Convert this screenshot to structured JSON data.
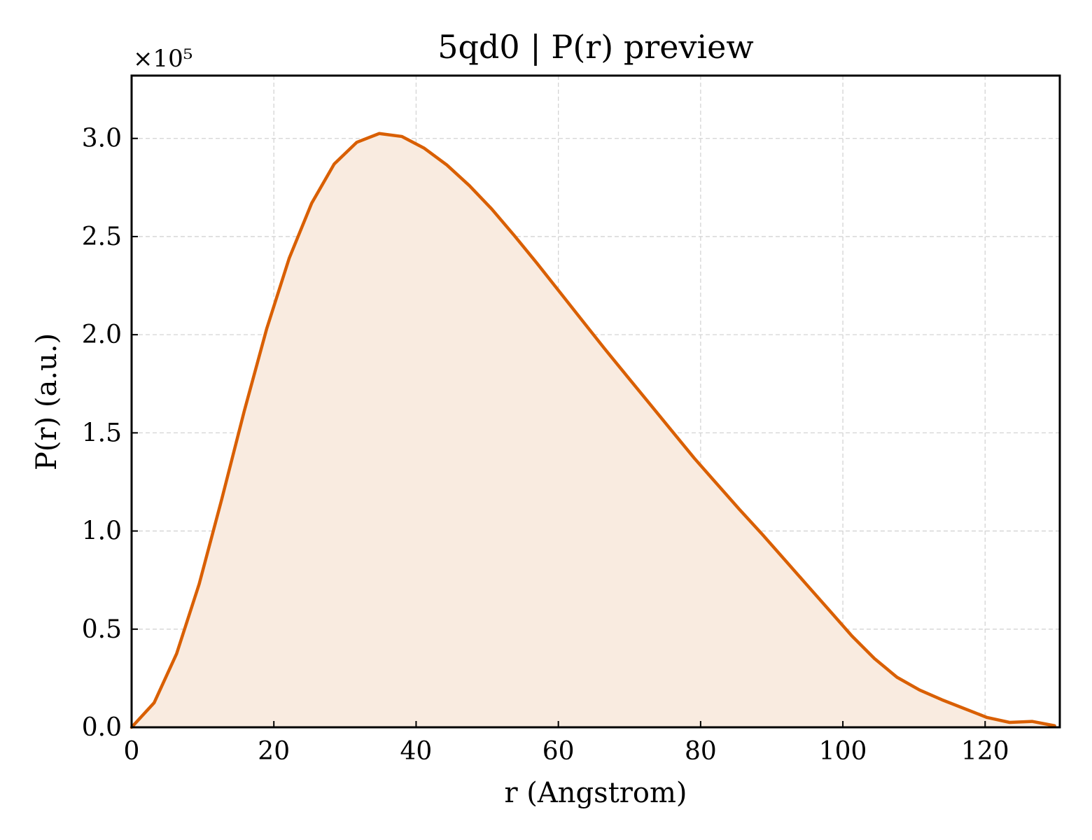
{
  "chart_data": {
    "type": "area",
    "title": "5qd0 | P(r) preview",
    "xlabel": "r (Angstrom)",
    "ylabel": "P(r) (a.u.)",
    "y_offset_label": "×10⁵",
    "y_scale": 100000,
    "xlim": [
      0,
      130.5
    ],
    "ylim": [
      0,
      332000
    ],
    "x_ticks": [
      0,
      20,
      40,
      60,
      80,
      100,
      120
    ],
    "x_tick_labels": [
      "0",
      "20",
      "40",
      "60",
      "80",
      "100",
      "120"
    ],
    "y_ticks": [
      0,
      50000,
      100000,
      150000,
      200000,
      250000,
      300000
    ],
    "y_tick_labels": [
      "0.0",
      "0.5",
      "1.0",
      "1.5",
      "2.0",
      "2.5",
      "3.0"
    ],
    "grid": true,
    "line_color": "#d95f02",
    "fill_color": "#f9ebe0",
    "x": [
      0,
      3.17,
      6.33,
      9.5,
      12.66,
      15.83,
      18.99,
      22.16,
      25.32,
      28.49,
      31.65,
      34.82,
      37.98,
      41.15,
      44.31,
      47.48,
      50.64,
      53.81,
      56.97,
      60.14,
      63.3,
      66.47,
      69.63,
      72.8,
      75.96,
      79.13,
      82.29,
      85.46,
      88.62,
      91.79,
      94.95,
      98.12,
      101.28,
      104.45,
      107.61,
      110.78,
      113.94,
      117.11,
      120.27,
      123.44,
      126.6,
      129.77
    ],
    "y": [
      0,
      12500,
      37500,
      73000,
      116000,
      161000,
      203000,
      239000,
      267000,
      287000,
      298000,
      302500,
      301000,
      295000,
      286500,
      276000,
      264000,
      250500,
      236500,
      222000,
      207500,
      193000,
      179000,
      165000,
      151000,
      137000,
      124000,
      111000,
      98500,
      85500,
      72500,
      59500,
      46500,
      35000,
      25500,
      19000,
      14000,
      9500,
      5000,
      2500,
      3000,
      800
    ]
  }
}
